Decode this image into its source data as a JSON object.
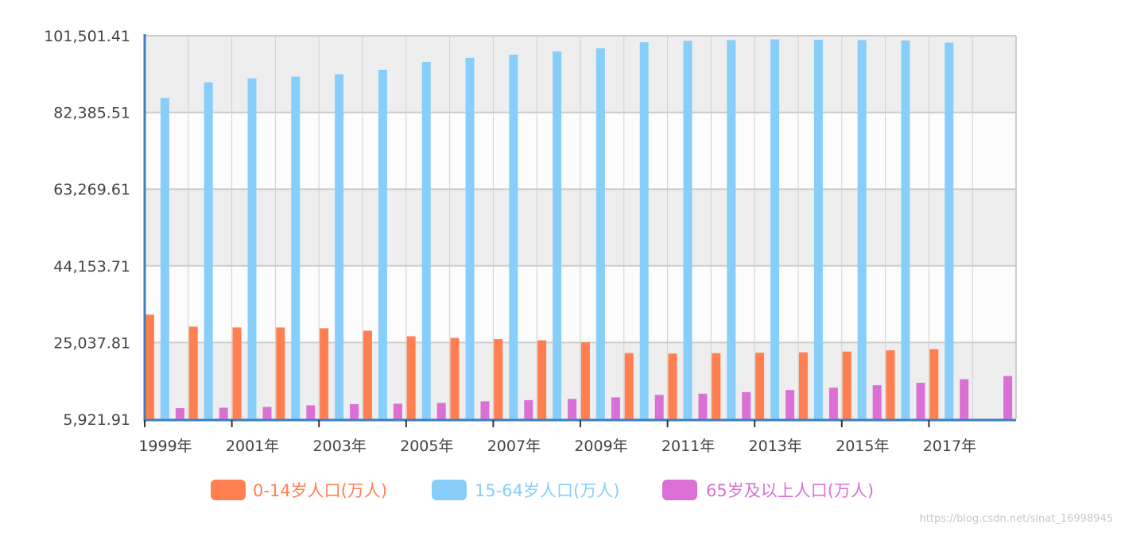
{
  "chart_data": {
    "type": "bar",
    "title": "",
    "xlabel": "",
    "ylabel": "",
    "x_tick_labels": [
      "1999年",
      "2001年",
      "2003年",
      "2005年",
      "2007年",
      "2009年",
      "2011年",
      "2013年",
      "2015年",
      "2017年"
    ],
    "y_tick_labels": [
      "5,921.91",
      "25,037.81",
      "44,153.71",
      "63,269.61",
      "82,385.51",
      "101,501.41"
    ],
    "ylim": [
      5921.91,
      101501.41
    ],
    "grid": true,
    "legend_position": "bottom",
    "series": [
      {
        "name": "0-14岁人口(万人)",
        "color": "#ff7f50",
        "values": [
          32000,
          29000,
          28800,
          28800,
          28600,
          28000,
          26600,
          26200,
          25900,
          25600,
          25100,
          22400,
          22300,
          22400,
          22500,
          22600,
          22800,
          23100,
          23400,
          null
        ]
      },
      {
        "name": "15-64岁人口(万人)",
        "color": "#87cefa",
        "values": [
          86000,
          89900,
          90900,
          91300,
          91900,
          93000,
          95000,
          96000,
          96800,
          97600,
          98400,
          99900,
          100200,
          100400,
          100600,
          100500,
          100400,
          100300,
          99800,
          null
        ]
      },
      {
        "name": "65岁及以上人口(万人)",
        "color": "#da70d6",
        "values": [
          8700,
          8800,
          9000,
          9400,
          9700,
          9800,
          10000,
          10400,
          10700,
          11000,
          11400,
          12000,
          12300,
          12700,
          13200,
          13800,
          14400,
          15000,
          15900,
          16700
        ]
      }
    ]
  },
  "watermark": "https://blog.csdn.net/sinat_16998945"
}
